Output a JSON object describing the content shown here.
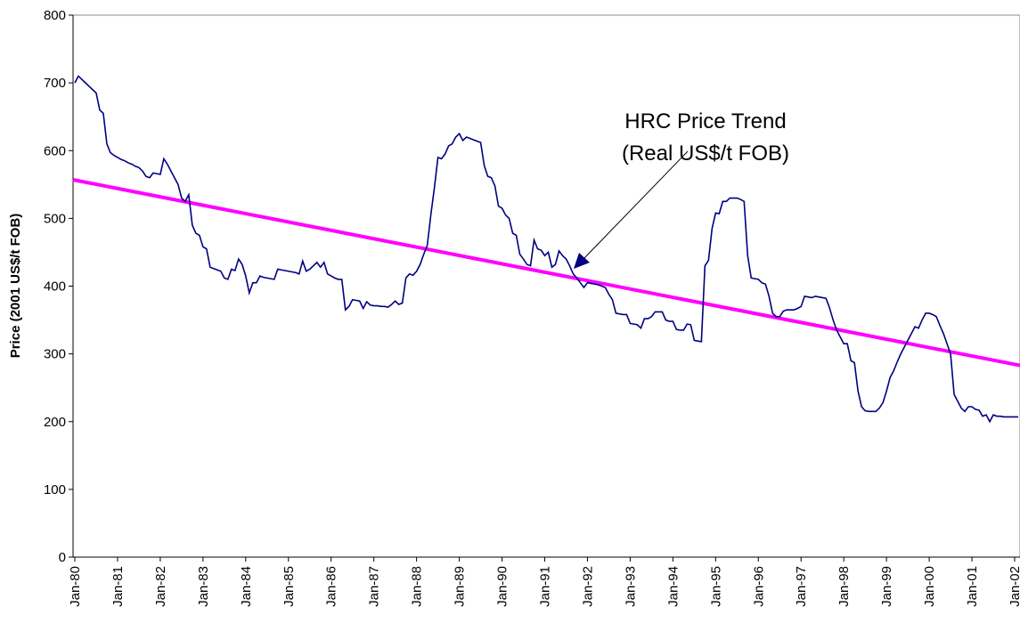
{
  "chart_data": {
    "type": "line",
    "ylabel": "Price (2001 US$/t FOB)",
    "annotation": [
      "HRC Price Trend",
      "(Real US$/t FOB)"
    ],
    "categories": [
      "Jan-80",
      null,
      null,
      null,
      null,
      null,
      null,
      null,
      null,
      null,
      null,
      null,
      "Jan-81",
      null,
      null,
      null,
      null,
      null,
      null,
      null,
      null,
      null,
      null,
      null,
      "Jan-82",
      null,
      null,
      null,
      null,
      null,
      null,
      null,
      null,
      null,
      null,
      null,
      "Jan-83",
      null,
      null,
      null,
      null,
      null,
      null,
      null,
      null,
      null,
      null,
      null,
      "Jan-84",
      null,
      null,
      null,
      null,
      null,
      null,
      null,
      null,
      null,
      null,
      null,
      "Jan-85",
      null,
      null,
      null,
      null,
      null,
      null,
      null,
      null,
      null,
      null,
      null,
      "Jan-86",
      null,
      null,
      null,
      null,
      null,
      null,
      null,
      null,
      null,
      null,
      null,
      "Jan-87",
      null,
      null,
      null,
      null,
      null,
      null,
      null,
      null,
      null,
      null,
      null,
      "Jan-88",
      null,
      null,
      null,
      null,
      null,
      null,
      null,
      null,
      null,
      null,
      null,
      "Jan-89",
      null,
      null,
      null,
      null,
      null,
      null,
      null,
      null,
      null,
      null,
      null,
      "Jan-90",
      null,
      null,
      null,
      null,
      null,
      null,
      null,
      null,
      null,
      null,
      null,
      "Jan-91",
      null,
      null,
      null,
      null,
      null,
      null,
      null,
      null,
      null,
      null,
      null,
      "Jan-92",
      null,
      null,
      null,
      null,
      null,
      null,
      null,
      null,
      null,
      null,
      null,
      "Jan-93",
      null,
      null,
      null,
      null,
      null,
      null,
      null,
      null,
      null,
      null,
      null,
      "Jan-94",
      null,
      null,
      null,
      null,
      null,
      null,
      null,
      null,
      null,
      null,
      null,
      "Jan-95",
      null,
      null,
      null,
      null,
      null,
      null,
      null,
      null,
      null,
      null,
      null,
      "Jan-96",
      null,
      null,
      null,
      null,
      null,
      null,
      null,
      null,
      null,
      null,
      null,
      "Jan-97",
      null,
      null,
      null,
      null,
      null,
      null,
      null,
      null,
      null,
      null,
      null,
      "Jan-98",
      null,
      null,
      null,
      null,
      null,
      null,
      null,
      null,
      null,
      null,
      null,
      "Jan-99",
      null,
      null,
      null,
      null,
      null,
      null,
      null,
      null,
      null,
      null,
      null,
      "Jan-00",
      null,
      null,
      null,
      null,
      null,
      null,
      null,
      null,
      null,
      null,
      null,
      "Jan-01",
      null,
      null,
      null,
      null,
      null,
      null,
      null,
      null,
      null,
      null,
      null,
      "Jan-02",
      null
    ],
    "values": [
      700,
      710,
      705,
      700,
      695,
      690,
      685,
      660,
      655,
      610,
      597,
      593,
      590,
      587,
      585,
      582,
      580,
      577,
      575,
      570,
      562,
      560,
      567,
      566,
      565,
      588,
      580,
      570,
      560,
      550,
      530,
      525,
      535,
      490,
      478,
      475,
      458,
      455,
      428,
      426,
      424,
      422,
      412,
      410,
      425,
      423,
      440,
      432,
      415,
      390,
      405,
      405,
      415,
      413,
      412,
      411,
      410,
      425,
      424,
      423,
      422,
      421,
      420,
      418,
      437,
      422,
      425,
      430,
      435,
      428,
      435,
      418,
      415,
      412,
      410,
      410,
      365,
      370,
      380,
      379,
      378,
      367,
      377,
      372,
      371,
      371,
      370,
      370,
      369,
      373,
      378,
      373,
      375,
      412,
      418,
      416,
      422,
      432,
      447,
      460,
      505,
      545,
      590,
      588,
      595,
      607,
      610,
      620,
      625,
      615,
      620,
      618,
      616,
      614,
      612,
      578,
      562,
      560,
      548,
      518,
      515,
      505,
      500,
      478,
      475,
      447,
      440,
      432,
      430,
      468,
      455,
      453,
      445,
      450,
      428,
      432,
      452,
      445,
      440,
      430,
      418,
      412,
      405,
      398,
      405,
      404,
      403,
      402,
      400,
      398,
      388,
      380,
      360,
      359,
      358,
      358,
      345,
      344,
      343,
      338,
      352,
      352,
      355,
      362,
      362,
      362,
      350,
      348,
      348,
      336,
      335,
      335,
      344,
      343,
      320,
      319,
      318,
      430,
      438,
      485,
      508,
      507,
      525,
      525,
      530,
      530,
      530,
      528,
      525,
      445,
      412,
      411,
      410,
      405,
      403,
      385,
      360,
      355,
      355,
      363,
      365,
      365,
      365,
      367,
      370,
      385,
      384,
      383,
      385,
      384,
      383,
      382,
      368,
      350,
      335,
      325,
      315,
      315,
      290,
      287,
      245,
      222,
      216,
      215,
      215,
      215,
      220,
      228,
      245,
      265,
      275,
      288,
      300,
      310,
      320,
      330,
      340,
      338,
      350,
      360,
      360,
      358,
      355,
      342,
      330,
      315,
      300,
      240,
      230,
      220,
      215,
      222,
      222,
      218,
      217,
      208,
      210,
      200,
      210,
      208,
      208,
      207,
      207,
      207,
      207,
      207
    ],
    "color": "#000080",
    "trend": {
      "start": 557,
      "end": 283,
      "color": "#ff00ff"
    },
    "ylim": [
      0,
      800
    ],
    "yticks": [
      0,
      100,
      200,
      300,
      400,
      500,
      600,
      700,
      800
    ]
  }
}
